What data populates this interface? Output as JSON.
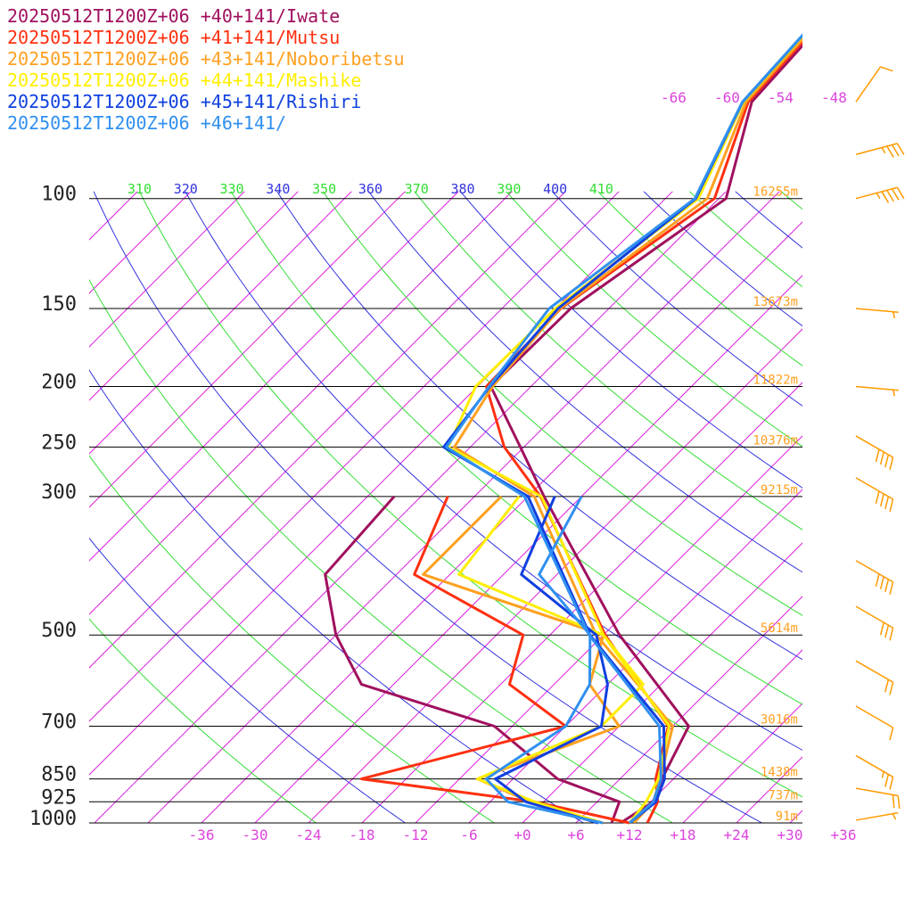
{
  "chart_data": {
    "type": "line",
    "diagram": "skew-T log-P",
    "legend_location": "top-left",
    "series": [
      {
        "name": "20250512T1200Z+06 +40+141/Iwate",
        "color": "#a0105e",
        "temperature": [
          [
            100,
            -47.2
          ],
          [
            150,
            -52.3
          ],
          [
            200,
            -52.5
          ],
          [
            250,
            -42.4
          ],
          [
            300,
            -34.2
          ],
          [
            500,
            -10.2
          ],
          [
            700,
            7.8
          ],
          [
            850,
            10.7
          ],
          [
            925,
            12.3
          ],
          [
            1000,
            11.0
          ]
        ],
        "dewpoint": [
          [
            300,
            -51.0
          ],
          [
            400,
            -50.0
          ],
          [
            500,
            -42.0
          ],
          [
            600,
            -33.6
          ],
          [
            700,
            -14.0
          ],
          [
            850,
            -1.0
          ],
          [
            925,
            8.5
          ],
          [
            1000,
            10.0
          ]
        ]
      },
      {
        "name": "20250512T1200Z+06 +41+141/Mutsu",
        "color": "#ff3010",
        "temperature": [
          [
            100,
            -48.5
          ],
          [
            150,
            -53.4
          ],
          [
            200,
            -53.0
          ],
          [
            250,
            -44.2
          ],
          [
            300,
            -34.6
          ],
          [
            500,
            -11.8
          ],
          [
            700,
            5.5
          ],
          [
            850,
            10.0
          ],
          [
            925,
            12.8
          ],
          [
            1000,
            14.0
          ]
        ],
        "dewpoint": [
          [
            300,
            -45.0
          ],
          [
            400,
            -40.0
          ],
          [
            500,
            -21.0
          ],
          [
            600,
            -17.0
          ],
          [
            700,
            -6.0
          ],
          [
            850,
            -23.0
          ],
          [
            925,
            -1.0
          ],
          [
            1000,
            12.0
          ]
        ]
      },
      {
        "name": "20250512T1200Z+06 +43+141/Noboribetsu",
        "color": "#ffa020",
        "temperature": [
          [
            100,
            -49.3
          ],
          [
            150,
            -53.5
          ],
          [
            200,
            -52.3
          ],
          [
            250,
            -49.8
          ],
          [
            300,
            -35.3
          ],
          [
            500,
            -12.8
          ],
          [
            700,
            6.0
          ],
          [
            850,
            10.5
          ],
          [
            925,
            12.3
          ],
          [
            1000,
            12.5
          ]
        ],
        "dewpoint": [
          [
            300,
            -39.0
          ],
          [
            400,
            -39.0
          ],
          [
            500,
            -12.0
          ],
          [
            600,
            -8.0
          ],
          [
            700,
            0.0
          ],
          [
            850,
            -10.0
          ],
          [
            925,
            -1.5
          ],
          [
            1000,
            9.0
          ]
        ]
      },
      {
        "name": "20250512T1200Z+06 +44+141/Mashike",
        "color": "#ffee00",
        "temperature": [
          [
            100,
            -50.3
          ],
          [
            150,
            -54.0
          ],
          [
            200,
            -54.2
          ],
          [
            250,
            -50.5
          ],
          [
            300,
            -34.5
          ],
          [
            500,
            -12.0
          ],
          [
            700,
            5.6
          ],
          [
            850,
            10.3
          ],
          [
            925,
            11.5
          ],
          [
            1000,
            12.0
          ]
        ],
        "dewpoint": [
          [
            300,
            -37.0
          ],
          [
            400,
            -35.0
          ],
          [
            500,
            -12.0
          ],
          [
            600,
            -2.0
          ],
          [
            700,
            -2.0
          ],
          [
            850,
            -10.0
          ],
          [
            925,
            -1.0
          ],
          [
            1000,
            9.0
          ]
        ]
      },
      {
        "name": "20250512T1200Z+06 +45+141/Rishiri",
        "color": "#1040e0",
        "temperature": [
          [
            100,
            -50.6
          ],
          [
            150,
            -53.7
          ],
          [
            200,
            -52.6
          ],
          [
            250,
            -51.0
          ],
          [
            300,
            -36.0
          ],
          [
            500,
            -13.5
          ],
          [
            700,
            5.0
          ],
          [
            850,
            11.0
          ],
          [
            925,
            12.6
          ],
          [
            1000,
            12.0
          ]
        ],
        "dewpoint": [
          [
            300,
            -33.0
          ],
          [
            400,
            -28.0
          ],
          [
            500,
            -12.8
          ],
          [
            600,
            -6.0
          ],
          [
            700,
            -2.0
          ],
          [
            850,
            -8.0
          ],
          [
            925,
            -2.0
          ],
          [
            1000,
            8.5
          ]
        ]
      },
      {
        "name": "20250512T1200Z+06 +46+141/",
        "color": "#3090f0",
        "temperature": [
          [
            100,
            -50.7
          ],
          [
            150,
            -54.7
          ],
          [
            200,
            -52.7
          ],
          [
            250,
            -50.7
          ],
          [
            300,
            -36.4
          ],
          [
            500,
            -13.6
          ],
          [
            700,
            4.5
          ],
          [
            850,
            10.6
          ],
          [
            925,
            12.3
          ],
          [
            1000,
            12.0
          ]
        ],
        "dewpoint": [
          [
            300,
            -30.0
          ],
          [
            400,
            -26.0
          ],
          [
            500,
            -13.5
          ],
          [
            600,
            -8.0
          ],
          [
            700,
            -6.0
          ],
          [
            850,
            -9.0
          ],
          [
            925,
            -4.0
          ],
          [
            1000,
            9.0
          ]
        ]
      }
    ],
    "pressure_levels": [
      {
        "p": 100,
        "label": "100",
        "height": "16255m"
      },
      {
        "p": 150,
        "label": "150",
        "height": "13673m"
      },
      {
        "p": 200,
        "label": "200",
        "height": "11822m"
      },
      {
        "p": 250,
        "label": "250",
        "height": "10376m"
      },
      {
        "p": 300,
        "label": "300",
        "height": "9215m"
      },
      {
        "p": 500,
        "label": "500",
        "height": "5614m"
      },
      {
        "p": 700,
        "label": "700",
        "height": "3016m"
      },
      {
        "p": 850,
        "label": "850",
        "height": "1438m"
      },
      {
        "p": 925,
        "label": "925",
        "height": "737m"
      },
      {
        "p": 1000,
        "label": "1000",
        "height": "91m"
      }
    ],
    "x_ticks": [
      {
        "value": -36,
        "label": "-36"
      },
      {
        "value": -30,
        "label": "-30"
      },
      {
        "value": -24,
        "label": "-24"
      },
      {
        "value": -18,
        "label": "-18"
      },
      {
        "value": -12,
        "label": "-12"
      },
      {
        "value": -6,
        "label": "-6"
      },
      {
        "value": 0,
        "label": "+0"
      },
      {
        "value": 6,
        "label": "+6"
      },
      {
        "value": 12,
        "label": "+12"
      },
      {
        "value": 18,
        "label": "+18"
      },
      {
        "value": 24,
        "label": "+24"
      },
      {
        "value": 30,
        "label": "+30"
      },
      {
        "value": 36,
        "label": "+36"
      }
    ],
    "upper_isotherm_labels": [
      {
        "value": -66,
        "label": "-66"
      },
      {
        "value": -60,
        "label": "-60"
      },
      {
        "value": -54,
        "label": "-54"
      },
      {
        "value": -48,
        "label": "-48"
      }
    ],
    "theta_labels": [
      {
        "value": 310,
        "label": "310"
      },
      {
        "value": 320,
        "label": "320"
      },
      {
        "value": 330,
        "label": "330"
      },
      {
        "value": 340,
        "label": "340"
      },
      {
        "value": 350,
        "label": "350"
      },
      {
        "value": 360,
        "label": "360"
      },
      {
        "value": 370,
        "label": "370"
      },
      {
        "value": 380,
        "label": "380"
      },
      {
        "value": 390,
        "label": "390"
      },
      {
        "value": 400,
        "label": "400"
      },
      {
        "value": 410,
        "label": "410"
      }
    ],
    "wind_barbs": [
      {
        "p": 70,
        "dir": 215,
        "speed_kt": 10
      },
      {
        "p": 85,
        "dir": 255,
        "speed_kt": 35
      },
      {
        "p": 100,
        "dir": 255,
        "speed_kt": 45
      },
      {
        "p": 150,
        "dir": 275,
        "speed_kt": 5
      },
      {
        "p": 200,
        "dir": 275,
        "speed_kt": 5
      },
      {
        "p": 240,
        "dir": 300,
        "speed_kt": 40
      },
      {
        "p": 280,
        "dir": 300,
        "speed_kt": 40
      },
      {
        "p": 380,
        "dir": 300,
        "speed_kt": 40
      },
      {
        "p": 450,
        "dir": 300,
        "speed_kt": 30
      },
      {
        "p": 550,
        "dir": 300,
        "speed_kt": 20
      },
      {
        "p": 650,
        "dir": 300,
        "speed_kt": 10
      },
      {
        "p": 780,
        "dir": 300,
        "speed_kt": 25
      },
      {
        "p": 880,
        "dir": 280,
        "speed_kt": 20
      },
      {
        "p": 990,
        "dir": 260,
        "speed_kt": 5
      }
    ]
  },
  "colors": {
    "isotherm": "#dd22dd",
    "isotherm_label": "#dd44dd",
    "dry_adiabat_green": "#33dd33",
    "dry_adiabat_blue": "#3333dd",
    "isobar": "#000000",
    "height_label": "#ffa020",
    "wind_barb": "#ff9a00"
  }
}
